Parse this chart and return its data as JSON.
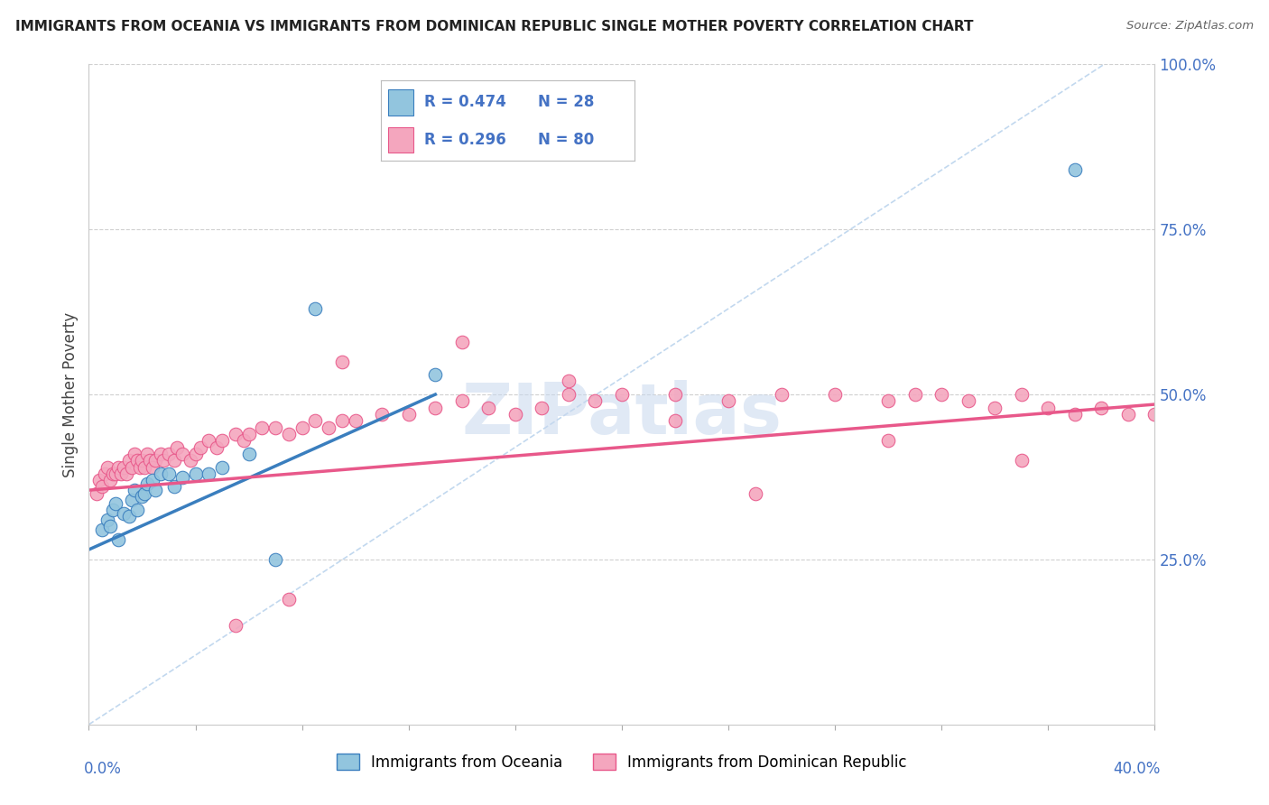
{
  "title": "IMMIGRANTS FROM OCEANIA VS IMMIGRANTS FROM DOMINICAN REPUBLIC SINGLE MOTHER POVERTY CORRELATION CHART",
  "source": "Source: ZipAtlas.com",
  "ylabel": "Single Mother Poverty",
  "x_min": 0.0,
  "x_max": 0.4,
  "y_min": 0.0,
  "y_max": 1.0,
  "color_blue": "#92c5de",
  "color_pink": "#f4a6be",
  "color_blue_line": "#3a7ebe",
  "color_pink_line": "#e8588a",
  "color_diag": "#a8c8e8",
  "watermark": "ZIPatlas",
  "legend_r1": "R = 0.474",
  "legend_n1": "N = 28",
  "legend_r2": "R = 0.296",
  "legend_n2": "N = 80",
  "blue_x": [
    0.005,
    0.007,
    0.008,
    0.009,
    0.01,
    0.011,
    0.013,
    0.015,
    0.016,
    0.017,
    0.018,
    0.02,
    0.021,
    0.022,
    0.024,
    0.025,
    0.027,
    0.03,
    0.032,
    0.035,
    0.04,
    0.045,
    0.05,
    0.06,
    0.07,
    0.085,
    0.13,
    0.37
  ],
  "blue_y": [
    0.295,
    0.31,
    0.3,
    0.325,
    0.335,
    0.28,
    0.32,
    0.315,
    0.34,
    0.355,
    0.325,
    0.345,
    0.35,
    0.365,
    0.37,
    0.355,
    0.38,
    0.38,
    0.36,
    0.375,
    0.38,
    0.38,
    0.39,
    0.41,
    0.25,
    0.63,
    0.53,
    0.84
  ],
  "pink_x": [
    0.003,
    0.004,
    0.005,
    0.006,
    0.007,
    0.008,
    0.009,
    0.01,
    0.011,
    0.012,
    0.013,
    0.014,
    0.015,
    0.016,
    0.017,
    0.018,
    0.019,
    0.02,
    0.021,
    0.022,
    0.023,
    0.024,
    0.025,
    0.027,
    0.028,
    0.03,
    0.032,
    0.033,
    0.035,
    0.038,
    0.04,
    0.042,
    0.045,
    0.048,
    0.05,
    0.055,
    0.058,
    0.06,
    0.065,
    0.07,
    0.075,
    0.08,
    0.085,
    0.09,
    0.095,
    0.1,
    0.11,
    0.12,
    0.13,
    0.14,
    0.15,
    0.16,
    0.17,
    0.18,
    0.19,
    0.2,
    0.22,
    0.24,
    0.26,
    0.28,
    0.3,
    0.31,
    0.32,
    0.33,
    0.34,
    0.35,
    0.36,
    0.37,
    0.38,
    0.39,
    0.4,
    0.055,
    0.075,
    0.095,
    0.14,
    0.18,
    0.22,
    0.25,
    0.3,
    0.35
  ],
  "pink_y": [
    0.35,
    0.37,
    0.36,
    0.38,
    0.39,
    0.37,
    0.38,
    0.38,
    0.39,
    0.38,
    0.39,
    0.38,
    0.4,
    0.39,
    0.41,
    0.4,
    0.39,
    0.4,
    0.39,
    0.41,
    0.4,
    0.39,
    0.4,
    0.41,
    0.4,
    0.41,
    0.4,
    0.42,
    0.41,
    0.4,
    0.41,
    0.42,
    0.43,
    0.42,
    0.43,
    0.44,
    0.43,
    0.44,
    0.45,
    0.45,
    0.44,
    0.45,
    0.46,
    0.45,
    0.46,
    0.46,
    0.47,
    0.47,
    0.48,
    0.49,
    0.48,
    0.47,
    0.48,
    0.5,
    0.49,
    0.5,
    0.5,
    0.49,
    0.5,
    0.5,
    0.49,
    0.5,
    0.5,
    0.49,
    0.48,
    0.5,
    0.48,
    0.47,
    0.48,
    0.47,
    0.47,
    0.15,
    0.19,
    0.55,
    0.58,
    0.52,
    0.46,
    0.35,
    0.43,
    0.4
  ],
  "blue_trend_x0": 0.0,
  "blue_trend_y0": 0.265,
  "blue_trend_x1": 0.13,
  "blue_trend_y1": 0.5,
  "pink_trend_x0": 0.0,
  "pink_trend_y0": 0.355,
  "pink_trend_x1": 0.4,
  "pink_trend_y1": 0.485
}
